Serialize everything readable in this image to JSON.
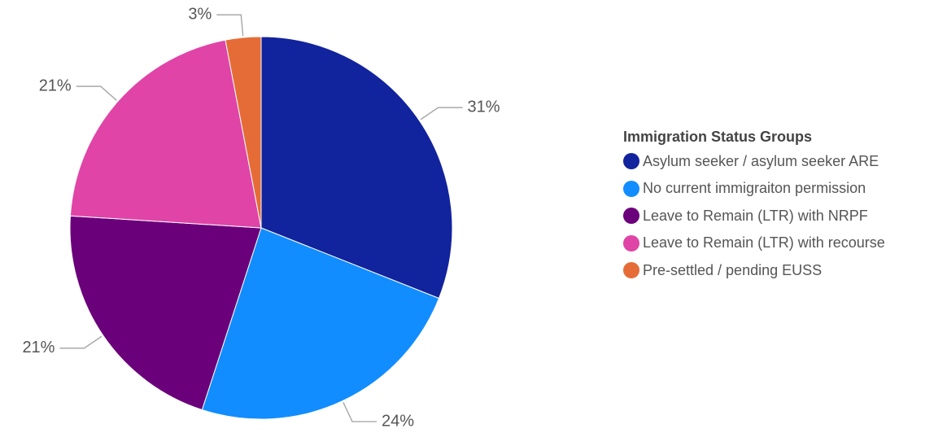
{
  "chart_data": {
    "type": "pie",
    "title": "",
    "legend_title": "Immigration Status Groups",
    "legend_position": "right",
    "slices": [
      {
        "label": "Asylum seeker / asylum seeker ARE",
        "value": 31,
        "display": "31%",
        "color": "#12239E"
      },
      {
        "label": "No current immigraiton permission",
        "value": 24,
        "display": "24%",
        "color": "#118DFF"
      },
      {
        "label": "Leave to Remain (LTR) with NRPF",
        "value": 21,
        "display": "21%",
        "color": "#6B007B"
      },
      {
        "label": "Leave to Remain (LTR) with recourse",
        "value": 21,
        "display": "21%",
        "color": "#E044A7"
      },
      {
        "label": "Pre-settled / pending EUSS",
        "value": 3,
        "display": "3%",
        "color": "#E66C37"
      }
    ]
  }
}
